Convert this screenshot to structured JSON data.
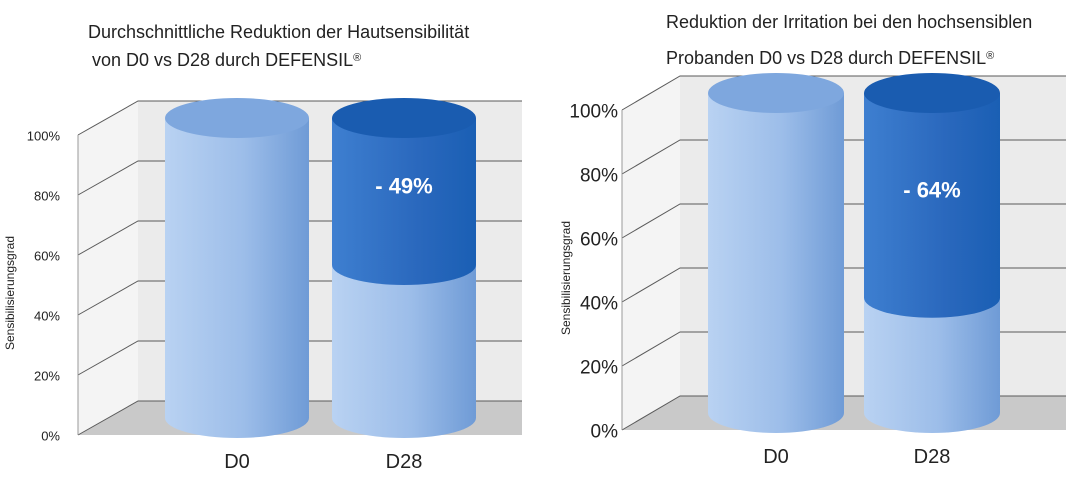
{
  "chart_data": [
    {
      "type": "bar",
      "title_line1": "Durchschnittliche Reduktion der Hautsensibilität",
      "title_line2": "von D0 vs D28 durch DEFENSIL",
      "title_sup": "®",
      "ylabel": "Sensibilisierungsgrad",
      "categories": [
        "D0",
        "D28"
      ],
      "ylim": [
        0,
        100
      ],
      "yticks": [
        "0%",
        "20%",
        "40%",
        "60%",
        "80%",
        "100%"
      ],
      "values": [
        100,
        51
      ],
      "reduction": [
        0,
        49
      ],
      "annotation": "- 49%",
      "colors": {
        "base": "#8fb4e3",
        "reduction": "#1a5fb4"
      }
    },
    {
      "type": "bar",
      "title_line1": "Reduktion der Irritation bei den hochsensiblen",
      "title_line2": "Probanden D0 vs D28 durch DEFENSIL",
      "title_sup": "®",
      "ylabel": "Sensibilisierungsgrad",
      "categories": [
        "D0",
        "D28"
      ],
      "ylim": [
        0,
        100
      ],
      "yticks": [
        "0%",
        "20%",
        "40%",
        "60%",
        "80%",
        "100%"
      ],
      "values": [
        100,
        36
      ],
      "reduction": [
        0,
        64
      ],
      "annotation": "- 64%",
      "colors": {
        "base": "#8fb4e3",
        "reduction": "#1a5fb4"
      }
    }
  ]
}
